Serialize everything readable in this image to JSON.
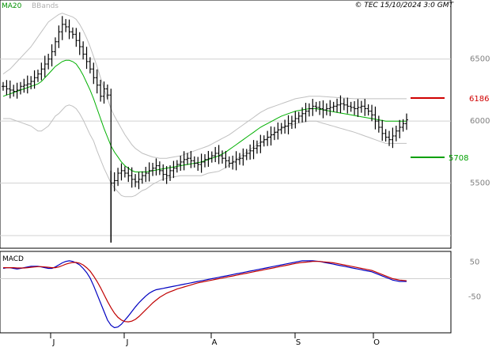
{
  "header": {
    "ma_label": "MA20",
    "bb_label": "BBands",
    "copyright": "© TEC 15/10/2024 3:0 GMT"
  },
  "colors": {
    "ma": "#00b000",
    "bbands": "#c0c0c0",
    "bars": "#000000",
    "resistance": "#d00000",
    "support": "#00a000",
    "macd_line": "#0000c0",
    "signal_line": "#c00000",
    "grid": "#d0d0d0"
  },
  "chart_data": [
    {
      "type": "ohlc",
      "name": "price",
      "x_labels": [
        "J",
        "J",
        "A",
        "S",
        "O"
      ],
      "y_ticks": [
        5500,
        6000,
        6500
      ],
      "y_tick_labels": [
        "5500",
        "6000",
        "6500"
      ],
      "ylim": [
        5000,
        6900
      ],
      "levels": [
        {
          "label": "6186",
          "value": 6186,
          "kind": "resistance"
        },
        {
          "label": "5708",
          "value": 5708,
          "kind": "support"
        }
      ],
      "close": [
        6280,
        6260,
        6250,
        6240,
        6250,
        6280,
        6290,
        6300,
        6320,
        6350,
        6380,
        6420,
        6460,
        6500,
        6560,
        6640,
        6720,
        6780,
        6760,
        6720,
        6700,
        6650,
        6600,
        6540,
        6480,
        6420,
        6350,
        6290,
        6200,
        6260,
        6210,
        5500,
        5520,
        5580,
        5600,
        5580,
        5560,
        5530,
        5510,
        5530,
        5560,
        5580,
        5600,
        5620,
        5640,
        5600,
        5570,
        5560,
        5600,
        5620,
        5650,
        5670,
        5690,
        5700,
        5680,
        5660,
        5650,
        5670,
        5690,
        5700,
        5720,
        5740,
        5720,
        5700,
        5680,
        5660,
        5670,
        5690,
        5700,
        5720,
        5740,
        5760,
        5780,
        5800,
        5830,
        5850,
        5870,
        5890,
        5910,
        5930,
        5950,
        5960,
        5980,
        6000,
        6020,
        6040,
        6060,
        6080,
        6100,
        6120,
        6110,
        6100,
        6090,
        6100,
        6110,
        6120,
        6130,
        6140,
        6130,
        6120,
        6110,
        6100,
        6110,
        6120,
        6100,
        6080,
        6050,
        6000,
        5950,
        5900,
        5870,
        5850,
        5880,
        5920,
        5950,
        5980,
        6010
      ],
      "ma20": [
        6200,
        6210,
        6220,
        6230,
        6240,
        6250,
        6260,
        6270,
        6280,
        6290,
        6300,
        6320,
        6350,
        6380,
        6410,
        6440,
        6460,
        6480,
        6490,
        6490,
        6480,
        6460,
        6420,
        6370,
        6310,
        6250,
        6180,
        6100,
        6020,
        5940,
        5870,
        5800,
        5750,
        5710,
        5670,
        5640,
        5620,
        5600,
        5590,
        5590,
        5590,
        5590,
        5595,
        5600,
        5605,
        5610,
        5615,
        5620,
        5625,
        5630,
        5635,
        5640,
        5645,
        5650,
        5655,
        5660,
        5665,
        5670,
        5680,
        5690,
        5700,
        5710,
        5720,
        5735,
        5750,
        5770,
        5790,
        5810,
        5830,
        5850,
        5870,
        5890,
        5910,
        5930,
        5950,
        5965,
        5980,
        5995,
        6010,
        6025,
        6040,
        6050,
        6060,
        6070,
        6080,
        6085,
        6090,
        6095,
        6100,
        6100,
        6100,
        6095,
        6090,
        6085,
        6080,
        6075,
        6070,
        6065,
        6060,
        6055,
        6050,
        6045,
        6040,
        6035,
        6030,
        6025,
        6020,
        6015,
        6010,
        6005,
        6000,
        6000,
        6000,
        6000,
        6000,
        6000,
        6000
      ],
      "bb_upper": [
        6380,
        6400,
        6420,
        6450,
        6480,
        6510,
        6540,
        6570,
        6600,
        6640,
        6680,
        6720,
        6760,
        6800,
        6820,
        6840,
        6860,
        6870,
        6860,
        6850,
        6840,
        6820,
        6780,
        6730,
        6670,
        6600,
        6520,
        6440,
        6350,
        6260,
        6180,
        6100,
        6040,
        5990,
        5940,
        5890,
        5850,
        5810,
        5780,
        5760,
        5740,
        5730,
        5720,
        5710,
        5705,
        5700,
        5700,
        5700,
        5705,
        5710,
        5715,
        5720,
        5730,
        5740,
        5750,
        5760,
        5770,
        5780,
        5790,
        5800,
        5815,
        5830,
        5845,
        5860,
        5875,
        5890,
        5910,
        5930,
        5950,
        5970,
        5990,
        6010,
        6030,
        6050,
        6070,
        6085,
        6100,
        6110,
        6120,
        6130,
        6140,
        6150,
        6160,
        6170,
        6180,
        6185,
        6190,
        6195,
        6200,
        6200,
        6200,
        6200,
        6198,
        6196,
        6194,
        6192,
        6190,
        6188,
        6186,
        6184,
        6182,
        6180,
        6180,
        6180,
        6180,
        6180,
        6180,
        6180,
        6180,
        6180,
        6180,
        6180,
        6180,
        6180,
        6180,
        6180,
        6180
      ],
      "bb_lower": [
        6020,
        6020,
        6020,
        6010,
        6000,
        5990,
        5980,
        5970,
        5960,
        5940,
        5920,
        5920,
        5940,
        5960,
        6000,
        6040,
        6060,
        6090,
        6120,
        6130,
        6120,
        6100,
        6060,
        6010,
        5950,
        5890,
        5840,
        5760,
        5690,
        5620,
        5560,
        5500,
        5460,
        5430,
        5400,
        5390,
        5390,
        5390,
        5400,
        5420,
        5440,
        5450,
        5470,
        5490,
        5505,
        5520,
        5530,
        5540,
        5545,
        5550,
        5555,
        5560,
        5560,
        5560,
        5560,
        5560,
        5560,
        5560,
        5570,
        5580,
        5585,
        5590,
        5595,
        5610,
        5625,
        5650,
        5670,
        5690,
        5710,
        5730,
        5750,
        5770,
        5790,
        5810,
        5830,
        5845,
        5860,
        5880,
        5900,
        5920,
        5940,
        5950,
        5960,
        5970,
        5980,
        5985,
        5990,
        5995,
        6000,
        6000,
        6000,
        5990,
        5982,
        5974,
        5966,
        5958,
        5950,
        5942,
        5934,
        5926,
        5918,
        5910,
        5900,
        5890,
        5880,
        5870,
        5860,
        5850,
        5840,
        5830,
        5820,
        5820,
        5820,
        5820,
        5820,
        5820,
        5820
      ]
    },
    {
      "type": "line",
      "name": "MACD",
      "title": "MACD",
      "y_ticks": [
        50,
        -50
      ],
      "y_tick_labels": [
        "50",
        "-50"
      ],
      "ylim": [
        -150,
        70
      ],
      "series": [
        {
          "name": "MACD",
          "values": [
            30,
            32,
            32,
            30,
            28,
            30,
            32,
            34,
            36,
            36,
            36,
            34,
            32,
            30,
            30,
            34,
            40,
            46,
            50,
            52,
            50,
            46,
            40,
            30,
            18,
            2,
            -20,
            -45,
            -70,
            -95,
            -120,
            -135,
            -142,
            -140,
            -132,
            -120,
            -108,
            -95,
            -82,
            -70,
            -60,
            -50,
            -42,
            -36,
            -32,
            -30,
            -28,
            -26,
            -24,
            -22,
            -20,
            -18,
            -16,
            -14,
            -12,
            -10,
            -8,
            -6,
            -4,
            -2,
            0,
            2,
            4,
            6,
            8,
            10,
            12,
            14,
            16,
            18,
            20,
            22,
            24,
            26,
            28,
            30,
            32,
            34,
            36,
            38,
            40,
            42,
            44,
            46,
            48,
            50,
            52,
            52,
            52,
            52,
            51,
            50,
            48,
            46,
            44,
            42,
            40,
            38,
            36,
            34,
            32,
            30,
            28,
            26,
            24,
            22,
            20,
            16,
            12,
            8,
            4,
            0,
            -4,
            -6,
            -8,
            -8,
            -8
          ]
        },
        {
          "name": "Signal",
          "values": [
            32,
            32,
            32,
            32,
            31,
            31,
            31,
            32,
            33,
            34,
            35,
            35,
            34,
            33,
            32,
            32,
            34,
            38,
            42,
            45,
            47,
            47,
            45,
            40,
            32,
            22,
            8,
            -8,
            -26,
            -46,
            -66,
            -84,
            -100,
            -112,
            -120,
            -124,
            -125,
            -123,
            -118,
            -110,
            -100,
            -90,
            -80,
            -70,
            -62,
            -54,
            -48,
            -42,
            -38,
            -34,
            -30,
            -27,
            -24,
            -21,
            -18,
            -15,
            -12,
            -10,
            -8,
            -6,
            -4,
            -2,
            0,
            2,
            4,
            6,
            8,
            10,
            12,
            14,
            16,
            18,
            20,
            22,
            24,
            26,
            28,
            30,
            32,
            34,
            36,
            38,
            40,
            42,
            44,
            46,
            47,
            48,
            49,
            50,
            50,
            50,
            49,
            48,
            47,
            46,
            44,
            42,
            40,
            38,
            36,
            34,
            32,
            30,
            28,
            26,
            24,
            20,
            16,
            12,
            8,
            4,
            0,
            -2,
            -4,
            -5,
            -6
          ]
        }
      ]
    }
  ]
}
